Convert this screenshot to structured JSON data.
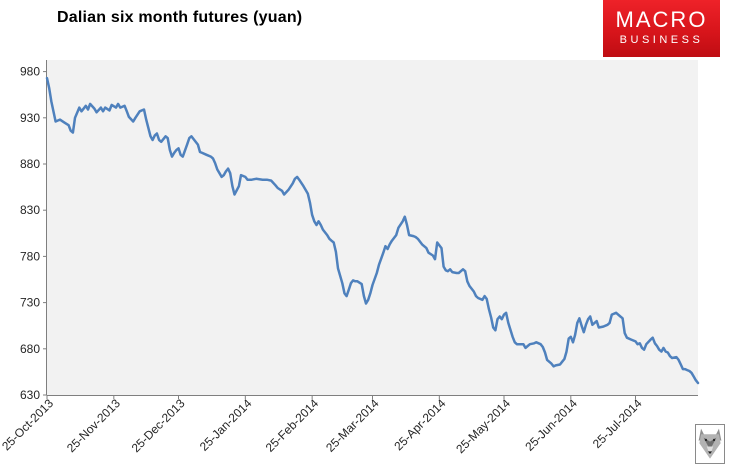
{
  "title": "Dalian six month futures (yuan)",
  "logo": {
    "line1": "MACRO",
    "line2": "BUSINESS",
    "bg_color": "#d8151b",
    "text_color": "#ffffff"
  },
  "icons": {
    "wolf_logo": "wolf-face"
  },
  "chart_data": {
    "type": "line",
    "title": "Dalian six month futures (yuan)",
    "xlabel": "",
    "ylabel": "",
    "ylim": [
      630,
      980
    ],
    "y_ticks": [
      980,
      930,
      880,
      830,
      780,
      730,
      680,
      630
    ],
    "x_tick_labels": [
      "25-Oct-2013",
      "25-Nov-2013",
      "25-Dec-2013",
      "25-Jan-2014",
      "25-Feb-2014",
      "25-Mar-2014",
      "25-Apr-2014",
      "25-May-2014",
      "25-Jun-2014",
      "25-Jul-2014"
    ],
    "x_tick_days": [
      0,
      31,
      61,
      92,
      123,
      151,
      182,
      212,
      243,
      273
    ],
    "x_unit": "days since 25-Oct-2013",
    "x_max_day": 302,
    "grid": false,
    "legend": false,
    "line_color": "#4f81bd",
    "plot_bg": "#f2f2f2",
    "axis_color": "#7f7f7f",
    "label_color": "#262626",
    "series": [
      {
        "name": "Dalian six month futures (yuan)",
        "points": [
          [
            0,
            973
          ],
          [
            1,
            962
          ],
          [
            2,
            948
          ],
          [
            4,
            926
          ],
          [
            6,
            928
          ],
          [
            8,
            925
          ],
          [
            10,
            922
          ],
          [
            11,
            916
          ],
          [
            12,
            914
          ],
          [
            13,
            930
          ],
          [
            15,
            941
          ],
          [
            16,
            937
          ],
          [
            18,
            943
          ],
          [
            19,
            939
          ],
          [
            20,
            945
          ],
          [
            22,
            940
          ],
          [
            23,
            936
          ],
          [
            25,
            941
          ],
          [
            26,
            937
          ],
          [
            27,
            941
          ],
          [
            29,
            938
          ],
          [
            30,
            944
          ],
          [
            32,
            941
          ],
          [
            33,
            945
          ],
          [
            34,
            941
          ],
          [
            36,
            943
          ],
          [
            37,
            937
          ],
          [
            38,
            931
          ],
          [
            40,
            926
          ],
          [
            41,
            930
          ],
          [
            43,
            937
          ],
          [
            45,
            939
          ],
          [
            46,
            928
          ],
          [
            48,
            910
          ],
          [
            49,
            906
          ],
          [
            50,
            911
          ],
          [
            51,
            913
          ],
          [
            52,
            906
          ],
          [
            53,
            904
          ],
          [
            55,
            910
          ],
          [
            56,
            908
          ],
          [
            57,
            895
          ],
          [
            58,
            888
          ],
          [
            59,
            892
          ],
          [
            60,
            895
          ],
          [
            61,
            897
          ],
          [
            62,
            890
          ],
          [
            63,
            888
          ],
          [
            65,
            901
          ],
          [
            66,
            908
          ],
          [
            67,
            910
          ],
          [
            68,
            907
          ],
          [
            70,
            901
          ],
          [
            71,
            893
          ],
          [
            72,
            892
          ],
          [
            74,
            890
          ],
          [
            76,
            888
          ],
          [
            77,
            886
          ],
          [
            78,
            881
          ],
          [
            79,
            874
          ],
          [
            80,
            870
          ],
          [
            81,
            866
          ],
          [
            82,
            868
          ],
          [
            83,
            872
          ],
          [
            84,
            875
          ],
          [
            85,
            870
          ],
          [
            86,
            856
          ],
          [
            87,
            847
          ],
          [
            89,
            856
          ],
          [
            90,
            868
          ],
          [
            92,
            866
          ],
          [
            93,
            863
          ],
          [
            95,
            863
          ],
          [
            97,
            864
          ],
          [
            100,
            863
          ],
          [
            102,
            863
          ],
          [
            104,
            862
          ],
          [
            106,
            857
          ],
          [
            107,
            854
          ],
          [
            109,
            851
          ],
          [
            110,
            847
          ],
          [
            112,
            852
          ],
          [
            114,
            859
          ],
          [
            115,
            864
          ],
          [
            116,
            866
          ],
          [
            117,
            863
          ],
          [
            119,
            856
          ],
          [
            121,
            848
          ],
          [
            122,
            838
          ],
          [
            123,
            825
          ],
          [
            124,
            818
          ],
          [
            125,
            814
          ],
          [
            126,
            818
          ],
          [
            127,
            814
          ],
          [
            128,
            809
          ],
          [
            130,
            803
          ],
          [
            131,
            799
          ],
          [
            132,
            797
          ],
          [
            133,
            795
          ],
          [
            134,
            785
          ],
          [
            135,
            767
          ],
          [
            137,
            751
          ],
          [
            138,
            740
          ],
          [
            139,
            737
          ],
          [
            140,
            744
          ],
          [
            141,
            751
          ],
          [
            142,
            754
          ],
          [
            143,
            753
          ],
          [
            144,
            753
          ],
          [
            146,
            750
          ],
          [
            147,
            737
          ],
          [
            148,
            729
          ],
          [
            149,
            733
          ],
          [
            150,
            740
          ],
          [
            151,
            749
          ],
          [
            153,
            762
          ],
          [
            154,
            771
          ],
          [
            156,
            784
          ],
          [
            157,
            791
          ],
          [
            158,
            788
          ],
          [
            159,
            793
          ],
          [
            160,
            797
          ],
          [
            162,
            803
          ],
          [
            163,
            811
          ],
          [
            165,
            818
          ],
          [
            166,
            823
          ],
          [
            167,
            814
          ],
          [
            168,
            803
          ],
          [
            170,
            802
          ],
          [
            171,
            801
          ],
          [
            172,
            799
          ],
          [
            174,
            793
          ],
          [
            176,
            789
          ],
          [
            177,
            784
          ],
          [
            179,
            781
          ],
          [
            180,
            777
          ],
          [
            181,
            795
          ],
          [
            183,
            789
          ],
          [
            184,
            769
          ],
          [
            185,
            765
          ],
          [
            186,
            764
          ],
          [
            187,
            766
          ],
          [
            188,
            763
          ],
          [
            190,
            762
          ],
          [
            191,
            762
          ],
          [
            193,
            766
          ],
          [
            194,
            764
          ],
          [
            195,
            753
          ],
          [
            196,
            748
          ],
          [
            198,
            742
          ],
          [
            199,
            737
          ],
          [
            200,
            735
          ],
          [
            202,
            733
          ],
          [
            203,
            737
          ],
          [
            204,
            734
          ],
          [
            205,
            723
          ],
          [
            206,
            714
          ],
          [
            207,
            703
          ],
          [
            208,
            700
          ],
          [
            209,
            712
          ],
          [
            210,
            715
          ],
          [
            211,
            712
          ],
          [
            212,
            717
          ],
          [
            213,
            719
          ],
          [
            214,
            708
          ],
          [
            216,
            693
          ],
          [
            217,
            687
          ],
          [
            218,
            685
          ],
          [
            219,
            685
          ],
          [
            221,
            685
          ],
          [
            222,
            681
          ],
          [
            223,
            683
          ],
          [
            224,
            685
          ],
          [
            226,
            686
          ],
          [
            227,
            687
          ],
          [
            229,
            685
          ],
          [
            230,
            682
          ],
          [
            231,
            676
          ],
          [
            232,
            668
          ],
          [
            234,
            664
          ],
          [
            235,
            661
          ],
          [
            236,
            662
          ],
          [
            238,
            663
          ],
          [
            239,
            666
          ],
          [
            240,
            669
          ],
          [
            241,
            677
          ],
          [
            242,
            691
          ],
          [
            243,
            693
          ],
          [
            244,
            687
          ],
          [
            245,
            695
          ],
          [
            246,
            708
          ],
          [
            247,
            713
          ],
          [
            248,
            705
          ],
          [
            249,
            698
          ],
          [
            250,
            706
          ],
          [
            251,
            712
          ],
          [
            252,
            715
          ],
          [
            253,
            706
          ],
          [
            255,
            710
          ],
          [
            256,
            703
          ],
          [
            258,
            704
          ],
          [
            260,
            706
          ],
          [
            261,
            708
          ],
          [
            262,
            717
          ],
          [
            264,
            719
          ],
          [
            266,
            715
          ],
          [
            267,
            713
          ],
          [
            268,
            697
          ],
          [
            269,
            692
          ],
          [
            271,
            690
          ],
          [
            273,
            688
          ],
          [
            274,
            685
          ],
          [
            275,
            686
          ],
          [
            276,
            681
          ],
          [
            277,
            679
          ],
          [
            278,
            685
          ],
          [
            280,
            690
          ],
          [
            281,
            692
          ],
          [
            282,
            686
          ],
          [
            283,
            683
          ],
          [
            284,
            679
          ],
          [
            285,
            677
          ],
          [
            286,
            681
          ],
          [
            287,
            677
          ],
          [
            288,
            676
          ],
          [
            289,
            672
          ],
          [
            290,
            670
          ],
          [
            292,
            671
          ],
          [
            293,
            668
          ],
          [
            294,
            663
          ],
          [
            295,
            658
          ],
          [
            296,
            658
          ],
          [
            297,
            657
          ],
          [
            298,
            656
          ],
          [
            299,
            654
          ],
          [
            300,
            650
          ],
          [
            301,
            646
          ],
          [
            302,
            643
          ]
        ]
      }
    ]
  }
}
